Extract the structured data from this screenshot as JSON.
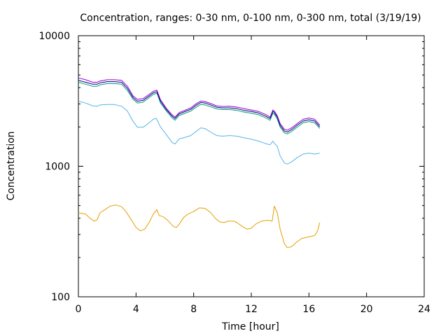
{
  "chart_data": {
    "type": "line",
    "title": "Concentration, ranges: 0-30 nm, 0-100 nm, 0-300 nm, total (3/19/19)",
    "xlabel": "Time [hour]",
    "ylabel": "Concentration",
    "xlim": [
      0,
      24
    ],
    "ylim": [
      100,
      10000
    ],
    "yscale": "log",
    "x_ticks": [
      0,
      4,
      8,
      12,
      16,
      20,
      24
    ],
    "y_ticks": [
      100,
      1000,
      10000
    ],
    "grid": false,
    "legend": "none",
    "series": [
      {
        "color": "#e69f00",
        "points": [
          [
            0,
            440
          ],
          [
            0.5,
            430
          ],
          [
            0.8,
            400
          ],
          [
            1.1,
            380
          ],
          [
            1.3,
            390
          ],
          [
            1.5,
            440
          ],
          [
            1.9,
            470
          ],
          [
            2.2,
            495
          ],
          [
            2.6,
            505
          ],
          [
            3.0,
            490
          ],
          [
            3.3,
            450
          ],
          [
            3.6,
            400
          ],
          [
            4.0,
            340
          ],
          [
            4.3,
            320
          ],
          [
            4.6,
            330
          ],
          [
            4.9,
            370
          ],
          [
            5.2,
            430
          ],
          [
            5.45,
            465
          ],
          [
            5.6,
            420
          ],
          [
            5.9,
            410
          ],
          [
            6.2,
            385
          ],
          [
            6.6,
            345
          ],
          [
            6.8,
            340
          ],
          [
            7.0,
            360
          ],
          [
            7.3,
            405
          ],
          [
            7.6,
            430
          ],
          [
            8.0,
            450
          ],
          [
            8.4,
            480
          ],
          [
            8.8,
            475
          ],
          [
            9.2,
            440
          ],
          [
            9.5,
            400
          ],
          [
            9.8,
            375
          ],
          [
            10.1,
            370
          ],
          [
            10.4,
            380
          ],
          [
            10.8,
            380
          ],
          [
            11.0,
            370
          ],
          [
            11.4,
            345
          ],
          [
            11.7,
            330
          ],
          [
            12.0,
            335
          ],
          [
            12.3,
            360
          ],
          [
            12.7,
            380
          ],
          [
            13.1,
            385
          ],
          [
            13.45,
            380
          ],
          [
            13.6,
            495
          ],
          [
            13.8,
            440
          ],
          [
            14.0,
            330
          ],
          [
            14.3,
            255
          ],
          [
            14.5,
            238
          ],
          [
            14.8,
            242
          ],
          [
            15.1,
            260
          ],
          [
            15.5,
            280
          ],
          [
            16.0,
            288
          ],
          [
            16.4,
            295
          ],
          [
            16.6,
            320
          ],
          [
            16.75,
            370
          ]
        ]
      },
      {
        "color": "#56b4e9",
        "points": [
          [
            0,
            3150
          ],
          [
            0.5,
            3050
          ],
          [
            1.0,
            2900
          ],
          [
            1.3,
            2880
          ],
          [
            1.5,
            2950
          ],
          [
            2.0,
            2970
          ],
          [
            2.5,
            2970
          ],
          [
            3.0,
            2880
          ],
          [
            3.4,
            2650
          ],
          [
            3.8,
            2200
          ],
          [
            4.1,
            1990
          ],
          [
            4.5,
            1990
          ],
          [
            4.9,
            2150
          ],
          [
            5.2,
            2290
          ],
          [
            5.4,
            2330
          ],
          [
            5.7,
            2000
          ],
          [
            6.1,
            1750
          ],
          [
            6.5,
            1520
          ],
          [
            6.7,
            1480
          ],
          [
            7.0,
            1620
          ],
          [
            7.3,
            1650
          ],
          [
            7.8,
            1720
          ],
          [
            8.2,
            1860
          ],
          [
            8.5,
            1970
          ],
          [
            8.8,
            1940
          ],
          [
            9.2,
            1820
          ],
          [
            9.6,
            1720
          ],
          [
            10.0,
            1700
          ],
          [
            10.5,
            1720
          ],
          [
            11.0,
            1700
          ],
          [
            11.5,
            1650
          ],
          [
            12.0,
            1610
          ],
          [
            12.5,
            1560
          ],
          [
            13.0,
            1490
          ],
          [
            13.3,
            1460
          ],
          [
            13.5,
            1560
          ],
          [
            13.6,
            1500
          ],
          [
            13.8,
            1420
          ],
          [
            14.0,
            1200
          ],
          [
            14.3,
            1060
          ],
          [
            14.5,
            1040
          ],
          [
            14.8,
            1080
          ],
          [
            15.2,
            1170
          ],
          [
            15.6,
            1240
          ],
          [
            16.0,
            1260
          ],
          [
            16.4,
            1240
          ],
          [
            16.75,
            1260
          ]
        ]
      },
      {
        "color": "#009e73",
        "points": [
          [
            0,
            4400
          ],
          [
            0.5,
            4250
          ],
          [
            1.0,
            4100
          ],
          [
            1.3,
            4100
          ],
          [
            1.5,
            4200
          ],
          [
            2.0,
            4300
          ],
          [
            2.5,
            4300
          ],
          [
            3.0,
            4250
          ],
          [
            3.4,
            3800
          ],
          [
            3.8,
            3250
          ],
          [
            4.1,
            3050
          ],
          [
            4.5,
            3100
          ],
          [
            4.9,
            3350
          ],
          [
            5.2,
            3550
          ],
          [
            5.45,
            3620
          ],
          [
            5.7,
            3050
          ],
          [
            6.1,
            2650
          ],
          [
            6.5,
            2350
          ],
          [
            6.7,
            2250
          ],
          [
            7.0,
            2450
          ],
          [
            7.3,
            2520
          ],
          [
            7.8,
            2650
          ],
          [
            8.2,
            2850
          ],
          [
            8.5,
            2980
          ],
          [
            8.8,
            2950
          ],
          [
            9.2,
            2850
          ],
          [
            9.6,
            2750
          ],
          [
            10.0,
            2720
          ],
          [
            10.5,
            2720
          ],
          [
            11.0,
            2680
          ],
          [
            11.5,
            2600
          ],
          [
            12.0,
            2550
          ],
          [
            12.5,
            2480
          ],
          [
            13.0,
            2350
          ],
          [
            13.3,
            2250
          ],
          [
            13.5,
            2550
          ],
          [
            13.6,
            2500
          ],
          [
            13.8,
            2300
          ],
          [
            14.0,
            2000
          ],
          [
            14.3,
            1800
          ],
          [
            14.5,
            1770
          ],
          [
            14.8,
            1850
          ],
          [
            15.2,
            2000
          ],
          [
            15.6,
            2150
          ],
          [
            16.0,
            2200
          ],
          [
            16.4,
            2150
          ],
          [
            16.75,
            1950
          ]
        ]
      },
      {
        "color": "#000080",
        "points": [
          [
            0,
            4550
          ],
          [
            0.5,
            4400
          ],
          [
            1.0,
            4250
          ],
          [
            1.3,
            4250
          ],
          [
            1.5,
            4350
          ],
          [
            2.0,
            4450
          ],
          [
            2.5,
            4450
          ],
          [
            3.0,
            4400
          ],
          [
            3.4,
            3950
          ],
          [
            3.8,
            3350
          ],
          [
            4.1,
            3150
          ],
          [
            4.5,
            3200
          ],
          [
            4.9,
            3450
          ],
          [
            5.2,
            3650
          ],
          [
            5.45,
            3720
          ],
          [
            5.7,
            3150
          ],
          [
            6.1,
            2720
          ],
          [
            6.5,
            2420
          ],
          [
            6.7,
            2320
          ],
          [
            7.0,
            2520
          ],
          [
            7.3,
            2600
          ],
          [
            7.8,
            2730
          ],
          [
            8.2,
            2950
          ],
          [
            8.5,
            3080
          ],
          [
            8.8,
            3050
          ],
          [
            9.2,
            2940
          ],
          [
            9.6,
            2830
          ],
          [
            10.0,
            2800
          ],
          [
            10.5,
            2800
          ],
          [
            11.0,
            2760
          ],
          [
            11.5,
            2680
          ],
          [
            12.0,
            2630
          ],
          [
            12.5,
            2560
          ],
          [
            13.0,
            2420
          ],
          [
            13.3,
            2320
          ],
          [
            13.5,
            2640
          ],
          [
            13.6,
            2580
          ],
          [
            13.8,
            2380
          ],
          [
            14.0,
            2060
          ],
          [
            14.3,
            1860
          ],
          [
            14.5,
            1830
          ],
          [
            14.8,
            1910
          ],
          [
            15.2,
            2070
          ],
          [
            15.6,
            2220
          ],
          [
            16.0,
            2270
          ],
          [
            16.4,
            2220
          ],
          [
            16.75,
            2010
          ]
        ]
      },
      {
        "color": "#9400d3",
        "points": [
          [
            0,
            4750
          ],
          [
            0.5,
            4600
          ],
          [
            1.0,
            4400
          ],
          [
            1.3,
            4400
          ],
          [
            1.5,
            4500
          ],
          [
            2.0,
            4600
          ],
          [
            2.5,
            4600
          ],
          [
            3.0,
            4550
          ],
          [
            3.4,
            4100
          ],
          [
            3.8,
            3450
          ],
          [
            4.1,
            3250
          ],
          [
            4.5,
            3300
          ],
          [
            4.9,
            3550
          ],
          [
            5.2,
            3750
          ],
          [
            5.45,
            3820
          ],
          [
            5.7,
            3230
          ],
          [
            6.1,
            2780
          ],
          [
            6.5,
            2480
          ],
          [
            6.7,
            2380
          ],
          [
            7.0,
            2580
          ],
          [
            7.3,
            2660
          ],
          [
            7.8,
            2800
          ],
          [
            8.2,
            3030
          ],
          [
            8.5,
            3160
          ],
          [
            8.8,
            3130
          ],
          [
            9.2,
            3020
          ],
          [
            9.6,
            2900
          ],
          [
            10.0,
            2870
          ],
          [
            10.5,
            2880
          ],
          [
            11.0,
            2840
          ],
          [
            11.5,
            2760
          ],
          [
            12.0,
            2700
          ],
          [
            12.5,
            2630
          ],
          [
            13.0,
            2490
          ],
          [
            13.3,
            2380
          ],
          [
            13.5,
            2700
          ],
          [
            13.6,
            2650
          ],
          [
            13.8,
            2440
          ],
          [
            14.0,
            2120
          ],
          [
            14.3,
            1920
          ],
          [
            14.5,
            1890
          ],
          [
            14.8,
            1970
          ],
          [
            15.2,
            2130
          ],
          [
            15.6,
            2290
          ],
          [
            16.0,
            2340
          ],
          [
            16.4,
            2290
          ],
          [
            16.75,
            2070
          ]
        ]
      }
    ]
  }
}
